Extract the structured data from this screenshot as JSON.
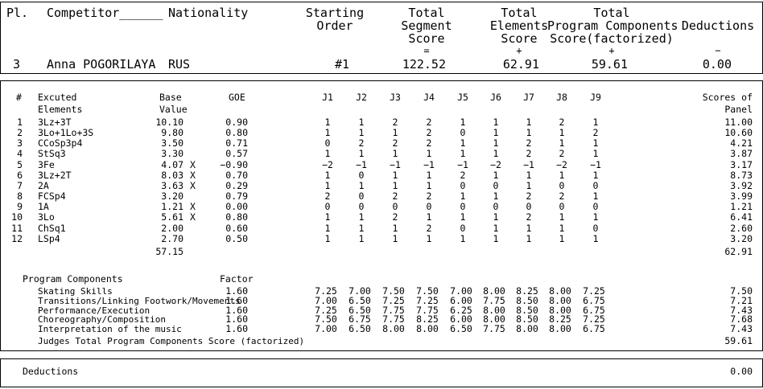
{
  "header": {
    "pl_label": "Pl.",
    "competitor_label": "Competitor______",
    "nationality_label": "Nationality",
    "starting_order_label": [
      "Starting",
      "Order"
    ],
    "tss_label": [
      "Total",
      "Segment",
      "Score",
      "="
    ],
    "tes_label": [
      "Total",
      "Elements",
      "Score",
      "+"
    ],
    "pcs_label": [
      "Total",
      "Program Components",
      "Score(factorized)",
      "+"
    ],
    "ded_label": [
      "Deductions",
      "",
      "",
      "−"
    ],
    "place": "3",
    "name": "Anna POGORILAYA",
    "nation": "RUS",
    "starting_order": "#1",
    "tss": "122.52",
    "tes": "62.91",
    "pcs": "59.61",
    "deductions": "0.00"
  },
  "elements_header": {
    "num": "#",
    "elem": [
      "Excuted",
      "Elements"
    ],
    "base": [
      "Base",
      "Value"
    ],
    "goe": "GOE",
    "judges": [
      "J1",
      "J2",
      "J3",
      "J4",
      "J5",
      "J6",
      "J7",
      "J8",
      "J9"
    ],
    "scores": [
      "Scores of",
      "Panel"
    ]
  },
  "elements": [
    {
      "n": "1",
      "name": "3Lz+3T",
      "base": "10.10",
      "x": "",
      "goe": "0.90",
      "j": [
        "1",
        "1",
        "2",
        "2",
        "1",
        "1",
        "1",
        "2",
        "1"
      ],
      "score": "11.00"
    },
    {
      "n": "2",
      "name": "3Lo+1Lo+3S",
      "base": "9.80",
      "x": "",
      "goe": "0.80",
      "j": [
        "1",
        "1",
        "1",
        "2",
        "0",
        "1",
        "1",
        "1",
        "2"
      ],
      "score": "10.60"
    },
    {
      "n": "3",
      "name": "CCoSp3p4",
      "base": "3.50",
      "x": "",
      "goe": "0.71",
      "j": [
        "0",
        "2",
        "2",
        "2",
        "1",
        "1",
        "2",
        "1",
        "1"
      ],
      "score": "4.21"
    },
    {
      "n": "4",
      "name": "StSq3",
      "base": "3.30",
      "x": "",
      "goe": "0.57",
      "j": [
        "1",
        "1",
        "1",
        "1",
        "1",
        "1",
        "2",
        "2",
        "1"
      ],
      "score": "3.87"
    },
    {
      "n": "5",
      "name": "3Fe",
      "base": "4.07",
      "x": "X",
      "goe": "−0.90",
      "j": [
        "−2",
        "−1",
        "−1",
        "−1",
        "−1",
        "−2",
        "−1",
        "−2",
        "−1"
      ],
      "score": "3.17"
    },
    {
      "n": "6",
      "name": "3Lz+2T",
      "base": "8.03",
      "x": "X",
      "goe": "0.70",
      "j": [
        "1",
        "0",
        "1",
        "1",
        "2",
        "1",
        "1",
        "1",
        "1"
      ],
      "score": "8.73"
    },
    {
      "n": "7",
      "name": "2A",
      "base": "3.63",
      "x": "X",
      "goe": "0.29",
      "j": [
        "1",
        "1",
        "1",
        "1",
        "0",
        "0",
        "1",
        "0",
        "0"
      ],
      "score": "3.92"
    },
    {
      "n": "8",
      "name": "FCSp4",
      "base": "3.20",
      "x": "",
      "goe": "0.79",
      "j": [
        "2",
        "0",
        "2",
        "2",
        "1",
        "1",
        "2",
        "2",
        "1"
      ],
      "score": "3.99"
    },
    {
      "n": "9",
      "name": "1A",
      "base": "1.21",
      "x": "X",
      "goe": "0.00",
      "j": [
        "0",
        "0",
        "0",
        "0",
        "0",
        "0",
        "0",
        "0",
        "0"
      ],
      "score": "1.21"
    },
    {
      "n": "10",
      "name": "3Lo",
      "base": "5.61",
      "x": "X",
      "goe": "0.80",
      "j": [
        "1",
        "1",
        "2",
        "1",
        "1",
        "1",
        "2",
        "1",
        "1"
      ],
      "score": "6.41"
    },
    {
      "n": "11",
      "name": "ChSq1",
      "base": "2.00",
      "x": "",
      "goe": "0.60",
      "j": [
        "1",
        "1",
        "1",
        "2",
        "0",
        "1",
        "1",
        "1",
        "0"
      ],
      "score": "2.60"
    },
    {
      "n": "12",
      "name": "LSp4",
      "base": "2.70",
      "x": "",
      "goe": "0.50",
      "j": [
        "1",
        "1",
        "1",
        "1",
        "1",
        "1",
        "1",
        "1",
        "1"
      ],
      "score": "3.20"
    }
  ],
  "base_total": "57.15",
  "elements_total": "62.91",
  "pc_header": {
    "label": "Program Components",
    "factor": "Factor"
  },
  "components": [
    {
      "name": "Skating Skills",
      "factor": "1.60",
      "j": [
        "7.25",
        "7.00",
        "7.50",
        "7.50",
        "7.00",
        "8.00",
        "8.25",
        "8.00",
        "7.25"
      ],
      "score": "7.50"
    },
    {
      "name": "Transitions/Linking Footwork/Movements",
      "factor": "1.60",
      "j": [
        "7.00",
        "6.50",
        "7.25",
        "7.25",
        "6.00",
        "7.75",
        "8.50",
        "8.00",
        "6.75"
      ],
      "score": "7.21"
    },
    {
      "name": "Performance/Execution",
      "factor": "1.60",
      "j": [
        "7.25",
        "6.50",
        "7.75",
        "7.75",
        "6.25",
        "8.00",
        "8.50",
        "8.00",
        "6.75"
      ],
      "score": "7.43"
    },
    {
      "name": "Choreography/Composition",
      "factor": "1.60",
      "j": [
        "7.50",
        "6.75",
        "7.75",
        "8.25",
        "6.00",
        "8.00",
        "8.50",
        "8.25",
        "7.25"
      ],
      "score": "7.68"
    },
    {
      "name": "Interpretation of the music",
      "factor": "1.60",
      "j": [
        "7.00",
        "6.50",
        "8.00",
        "8.00",
        "6.50",
        "7.75",
        "8.00",
        "8.00",
        "6.75"
      ],
      "score": "7.43"
    }
  ],
  "pcs_total_label": "Judges Total Program Components Score (factorized)",
  "pcs_total": "59.61",
  "deductions_label": "Deductions",
  "deductions_value": "0.00"
}
